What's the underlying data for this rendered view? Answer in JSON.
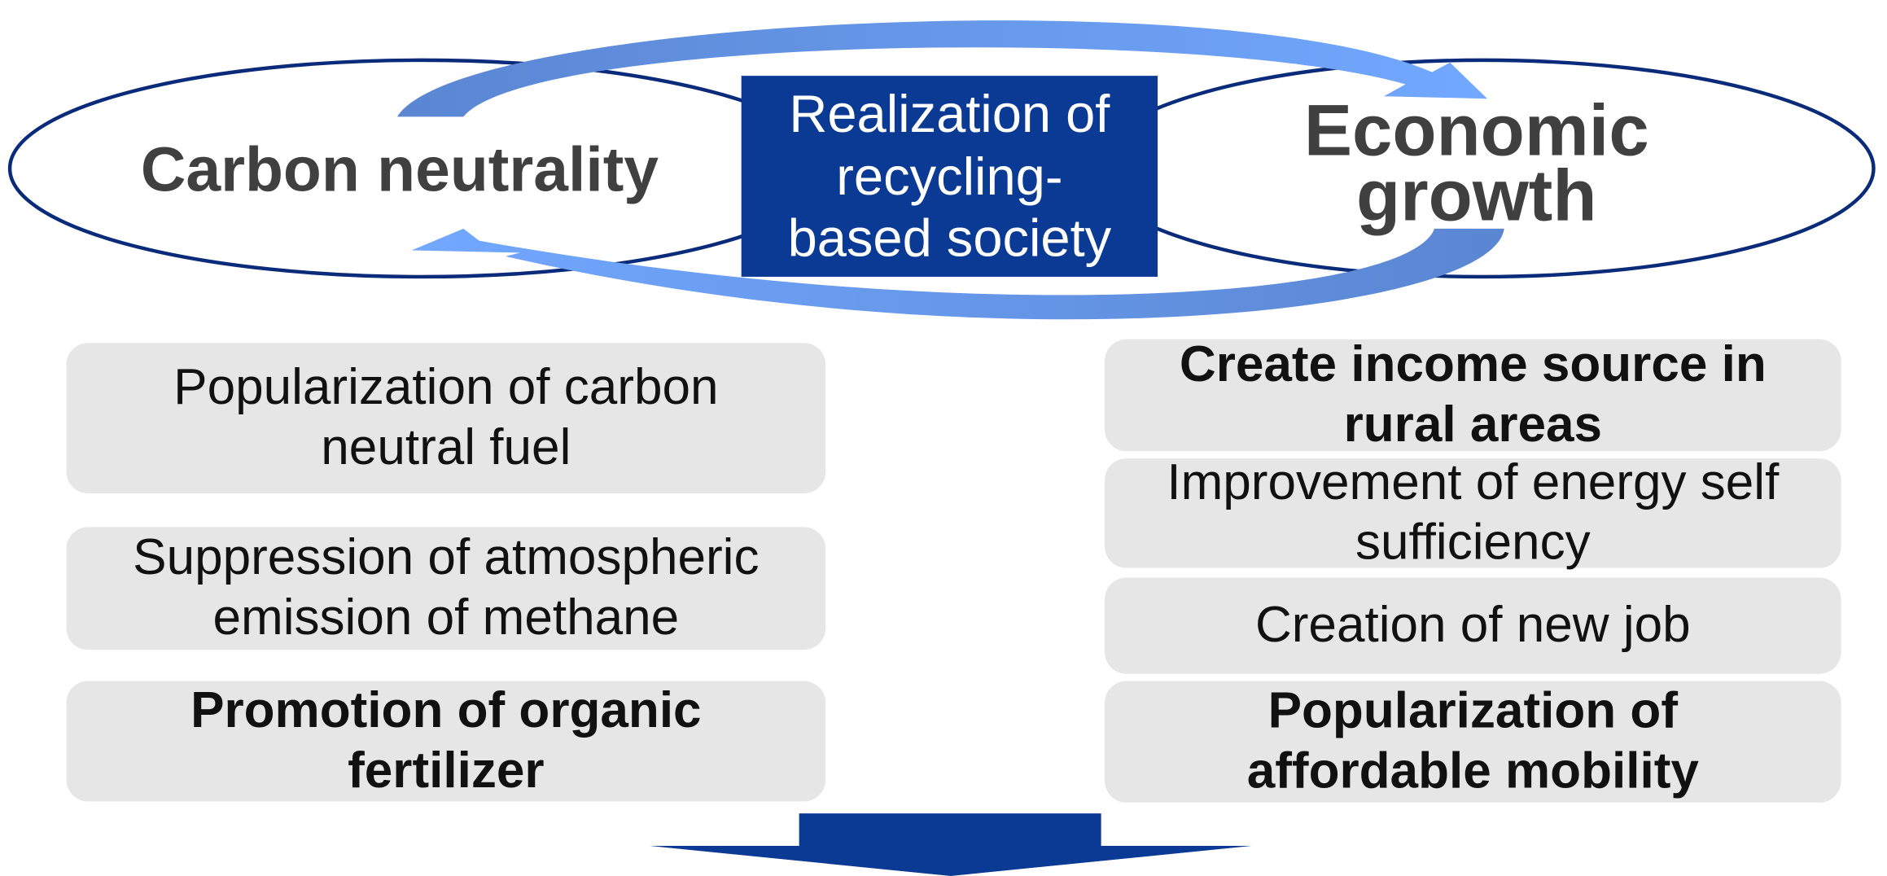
{
  "center": {
    "lines": [
      "Realization of",
      "recycling-",
      "based society"
    ]
  },
  "left": {
    "title": "Carbon neutrality",
    "items": [
      {
        "lines": [
          "Popularization of carbon",
          "neutral fuel"
        ]
      },
      {
        "lines": [
          "Suppression of atmospheric",
          "emission of methane"
        ]
      },
      {
        "lines": [
          "Promotion of organic",
          "fertilizer"
        ]
      }
    ]
  },
  "right": {
    "title_lines": [
      "Economic",
      "growth"
    ],
    "items": [
      {
        "lines": [
          "Create income source in",
          "rural areas"
        ]
      },
      {
        "lines": [
          "Improvement of energy self",
          "sufficiency"
        ]
      },
      {
        "lines": [
          "Creation of new job"
        ]
      },
      {
        "lines": [
          "Popularization of",
          "affordable mobility"
        ]
      }
    ]
  }
}
